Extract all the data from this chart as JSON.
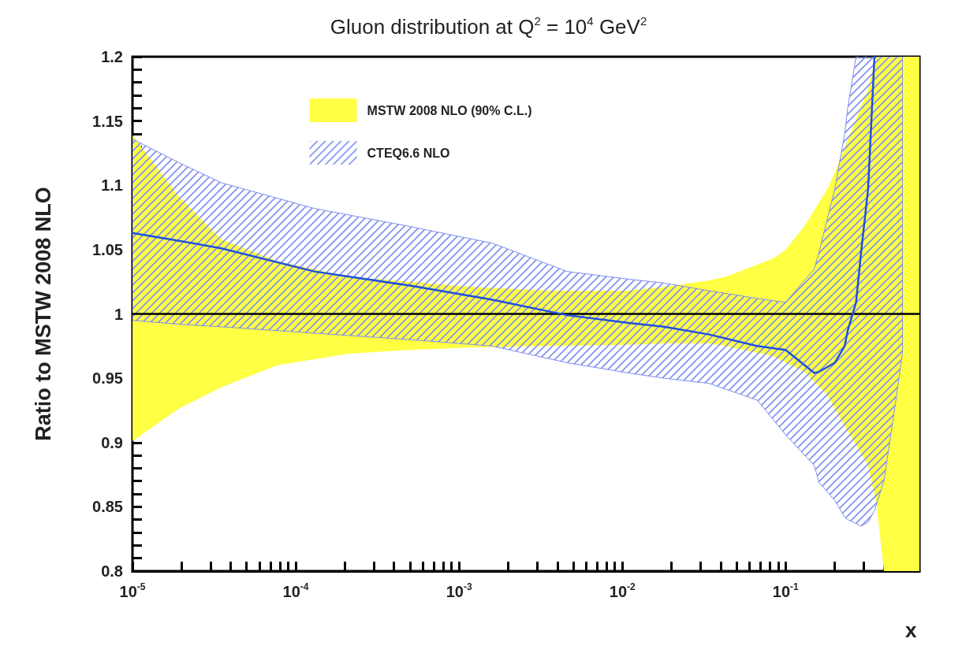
{
  "chart_data": {
    "type": "line",
    "title": "Gluon distribution at Q$^{2}$ = 10$^{4}$ GeV$^{2}$",
    "xlabel": "x",
    "ylabel": "Ratio to MSTW 2008 NLO",
    "log": "x",
    "xlim": [
      1e-05,
      0.66
    ],
    "ylim": [
      0.8,
      1.2
    ],
    "xticks": [
      {
        "value": 1e-05,
        "label": "10$^{-5}$"
      },
      {
        "value": 2e-05,
        "label": null
      },
      {
        "value": 3e-05,
        "label": null
      },
      {
        "value": 4e-05,
        "label": null
      },
      {
        "value": 5e-05,
        "label": null
      },
      {
        "value": 6e-05,
        "label": null
      },
      {
        "value": 7e-05,
        "label": null
      },
      {
        "value": 8e-05,
        "label": null
      },
      {
        "value": 9e-05,
        "label": null
      },
      {
        "value": 0.0001,
        "label": "10$^{-4}$"
      },
      {
        "value": 0.0002,
        "label": null
      },
      {
        "value": 0.0003,
        "label": null
      },
      {
        "value": 0.0004,
        "label": null
      },
      {
        "value": 0.0005,
        "label": null
      },
      {
        "value": 0.0006,
        "label": null
      },
      {
        "value": 0.0007,
        "label": null
      },
      {
        "value": 0.0008,
        "label": null
      },
      {
        "value": 0.0009,
        "label": null
      },
      {
        "value": 0.001,
        "label": "10$^{-3}$"
      },
      {
        "value": 0.002,
        "label": null
      },
      {
        "value": 0.003,
        "label": null
      },
      {
        "value": 0.004,
        "label": null
      },
      {
        "value": 0.005,
        "label": null
      },
      {
        "value": 0.006,
        "label": null
      },
      {
        "value": 0.007,
        "label": null
      },
      {
        "value": 0.008,
        "label": null
      },
      {
        "value": 0.009,
        "label": null
      },
      {
        "value": 0.01,
        "label": "10$^{-2}$"
      },
      {
        "value": 0.02,
        "label": null
      },
      {
        "value": 0.03,
        "label": null
      },
      {
        "value": 0.04,
        "label": null
      },
      {
        "value": 0.05,
        "label": null
      },
      {
        "value": 0.06,
        "label": null
      },
      {
        "value": 0.07,
        "label": null
      },
      {
        "value": 0.08,
        "label": null
      },
      {
        "value": 0.09,
        "label": null
      },
      {
        "value": 0.1,
        "label": "10$^{-1}$"
      },
      {
        "value": 0.2,
        "label": null
      },
      {
        "value": 0.3,
        "label": null
      },
      {
        "value": 0.4,
        "label": null
      },
      {
        "value": 0.5,
        "label": null
      },
      {
        "value": 0.6,
        "label": null
      }
    ],
    "yticks": [
      0.8,
      {
        "value": 0.81,
        "label": null
      },
      {
        "value": 0.82,
        "label": null
      },
      {
        "value": 0.83,
        "label": null
      },
      {
        "value": 0.84,
        "label": null
      },
      0.85,
      {
        "value": 0.86,
        "label": null
      },
      {
        "value": 0.87,
        "label": null
      },
      {
        "value": 0.88,
        "label": null
      },
      {
        "value": 0.89,
        "label": null
      },
      0.9,
      {
        "value": 0.91,
        "label": null
      },
      {
        "value": 0.92,
        "label": null
      },
      {
        "value": 0.93,
        "label": null
      },
      {
        "value": 0.94,
        "label": null
      },
      0.95,
      {
        "value": 0.96,
        "label": null
      },
      {
        "value": 0.97,
        "label": null
      },
      {
        "value": 0.98,
        "label": null
      },
      {
        "value": 0.99,
        "label": null
      },
      1,
      {
        "value": 1.01,
        "label": null
      },
      {
        "value": 1.02,
        "label": null
      },
      {
        "value": 1.03,
        "label": null
      },
      {
        "value": 1.04,
        "label": null
      },
      1.05,
      {
        "value": 1.06,
        "label": null
      },
      {
        "value": 1.07,
        "label": null
      },
      {
        "value": 1.08,
        "label": null
      },
      {
        "value": 1.09,
        "label": null
      },
      1.1,
      {
        "value": 1.11,
        "label": null
      },
      {
        "value": 1.12,
        "label": null
      },
      {
        "value": 1.13,
        "label": null
      },
      {
        "value": 1.14,
        "label": null
      },
      1.15,
      {
        "value": 1.16,
        "label": null
      },
      {
        "value": 1.17,
        "label": null
      },
      {
        "value": 1.18,
        "label": null
      },
      {
        "value": 1.19,
        "label": null
      },
      1.2
    ],
    "grid": false,
    "legend": "top left",
    "marker": "none",
    "line_style": "solid",
    "series": [
      {
        "name": "MSTW 2008 NLO (90% C.L.)",
        "color": "#ffff44",
        "x": [
          1e-05,
          1.9e-05,
          3.5e-05,
          7.7e-05,
          0.00021,
          0.0005,
          0.0012,
          0.0037,
          0.011,
          0.018,
          0.034,
          0.043,
          0.084,
          0.1,
          0.13,
          0.18,
          0.2,
          0.25,
          0.32,
          0.33,
          0.36,
          0.4,
          0.5,
          0.66
        ],
        "values": [
          null,
          null,
          null,
          null,
          null,
          null,
          null,
          null,
          null,
          null,
          null,
          null,
          null,
          null,
          null,
          null,
          null,
          null,
          null,
          null,
          null,
          null,
          null,
          null
        ],
        "upper": [
          1.139,
          1.092,
          1.058,
          1.041,
          1.029,
          1.025,
          1.021,
          1.018,
          1.018,
          1.021,
          1.026,
          1.029,
          1.043,
          1.05,
          1.068,
          1.097,
          1.11,
          1.141,
          1.175,
          1.183,
          1.2,
          1.2,
          1.2,
          1.2
        ],
        "lower": [
          0.901,
          0.926,
          0.943,
          0.96,
          0.969,
          0.972,
          0.974,
          0.975,
          0.976,
          0.977,
          0.977,
          0.975,
          0.967,
          0.962,
          0.955,
          0.937,
          0.926,
          0.905,
          0.882,
          0.873,
          0.852,
          0.8,
          0.8,
          0.8
        ]
      },
      {
        "name": "CTEQ6.6 NLO",
        "color": "#7f8ff0",
        "x": [
          1e-05,
          1.9e-05,
          3.5e-05,
          0.00013,
          0.0005,
          0.0016,
          0.0046,
          0.011,
          0.018,
          0.034,
          0.067,
          0.1,
          0.15,
          0.16,
          0.2,
          0.23,
          0.24,
          0.27,
          0.29,
          0.32,
          0.35,
          0.4,
          0.47,
          0.52
        ],
        "values": [
          null,
          null,
          null,
          null,
          null,
          null,
          null,
          null,
          null,
          null,
          null,
          null,
          null,
          null,
          null,
          null,
          null,
          null,
          null,
          null,
          null,
          null,
          null,
          null
        ],
        "upper": [
          1.136,
          1.118,
          1.102,
          1.082,
          1.068,
          1.055,
          1.033,
          1.027,
          1.024,
          1.018,
          1.012,
          1.009,
          1.035,
          1.048,
          1.097,
          1.14,
          1.16,
          1.2,
          1.2,
          1.2,
          1.2,
          1.2,
          1.2,
          1.2
        ],
        "lower": [
          0.995,
          0.992,
          0.99,
          0.985,
          0.98,
          0.975,
          0.962,
          0.954,
          0.95,
          0.946,
          0.933,
          0.906,
          0.882,
          0.869,
          0.855,
          0.842,
          0.84,
          0.837,
          0.835,
          0.838,
          0.847,
          0.87,
          0.93,
          0.97
        ]
      },
      {
        "type": "line",
        "color": "#000000",
        "x": [
          1e-05,
          0.66
        ],
        "values": [
          1,
          1
        ]
      },
      {
        "type": "line",
        "color": "#1f4fe0",
        "x": [
          1e-05,
          1.9e-05,
          3.5e-05,
          0.00013,
          0.0005,
          0.0016,
          0.0046,
          0.011,
          0.018,
          0.034,
          0.067,
          0.1,
          0.15,
          0.16,
          0.2,
          0.23,
          0.24,
          0.27,
          0.29,
          0.32,
          0.35
        ],
        "values": [
          1.063,
          1.057,
          1.051,
          1.033,
          1.022,
          1.011,
          0.999,
          0.993,
          0.99,
          0.984,
          0.975,
          0.972,
          0.954,
          0.955,
          0.962,
          0.975,
          0.987,
          1.009,
          1.048,
          1.097,
          1.2
        ]
      }
    ]
  }
}
